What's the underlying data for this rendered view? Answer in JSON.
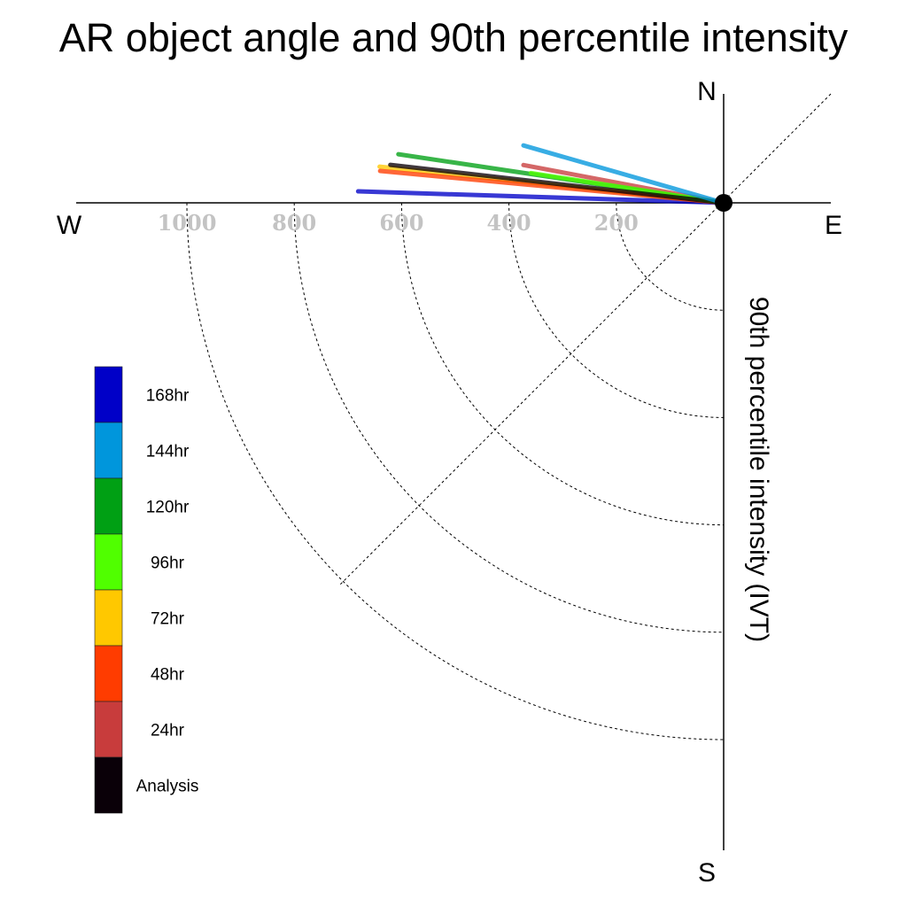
{
  "chart_data": {
    "type": "polar-quadrant",
    "title": "AR object angle and 90th percentile intensity",
    "ylabel": "90th percentile intensity (IVT)",
    "compass": {
      "north": "N",
      "south": "S",
      "east": "E",
      "west": "W"
    },
    "radial_ticks": [
      "200",
      "400",
      "600",
      "800",
      "1000"
    ],
    "radial_tick_values": [
      200,
      400,
      600,
      800,
      1000
    ],
    "radial_range": [
      0,
      1200
    ],
    "grid": true,
    "legend_position": "left",
    "series": [
      {
        "name": "168hr",
        "color": "#0000c8",
        "angle_deg": 178.2,
        "intensity": 681
      },
      {
        "name": "144hr",
        "color": "#0096dc",
        "angle_deg": 164.0,
        "intensity": 373
      },
      {
        "name": "120hr",
        "color": "#00a014",
        "angle_deg": 171.5,
        "intensity": 606
      },
      {
        "name": "96hr",
        "color": "#50ff00",
        "angle_deg": 171.2,
        "intensity": 359
      },
      {
        "name": "72hr",
        "color": "#ffc800",
        "angle_deg": 174.0,
        "intensity": 641
      },
      {
        "name": "48hr",
        "color": "#ff3c00",
        "angle_deg": 174.7,
        "intensity": 640
      },
      {
        "name": "24hr",
        "color": "#c83c3c",
        "angle_deg": 169.3,
        "intensity": 373
      },
      {
        "name": "Analysis",
        "color": "#0a0008",
        "angle_deg": 173.5,
        "intensity": 621
      }
    ]
  }
}
